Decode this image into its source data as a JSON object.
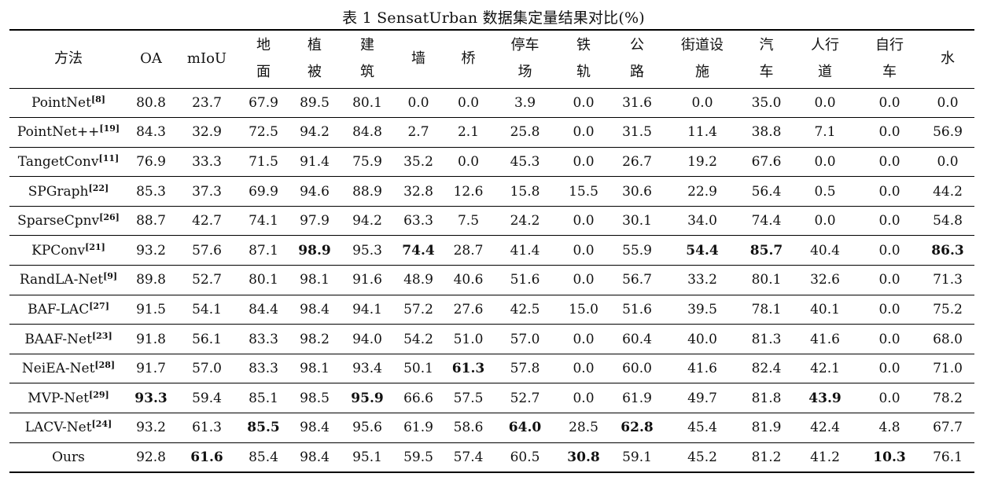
{
  "caption": "表 1 SensatUrban 数据集定量结果对比(%)",
  "columns": [
    {
      "l1": "方法",
      "l2": ""
    },
    {
      "l1": "OA",
      "l2": ""
    },
    {
      "l1": "mIoU",
      "l2": ""
    },
    {
      "l1": "地",
      "l2": "面"
    },
    {
      "l1": "植",
      "l2": "被"
    },
    {
      "l1": "建",
      "l2": "筑"
    },
    {
      "l1": "墙",
      "l2": ""
    },
    {
      "l1": "桥",
      "l2": ""
    },
    {
      "l1": "停车",
      "l2": "场"
    },
    {
      "l1": "铁",
      "l2": "轨"
    },
    {
      "l1": "公",
      "l2": "路"
    },
    {
      "l1": "街道设",
      "l2": "施"
    },
    {
      "l1": "汽",
      "l2": "车"
    },
    {
      "l1": "人行",
      "l2": "道"
    },
    {
      "l1": "自行",
      "l2": "车"
    },
    {
      "l1": "水",
      "l2": ""
    }
  ],
  "rows": [
    {
      "method": "PointNet",
      "ref": "[8]",
      "values": [
        "80.8",
        "23.7",
        "67.9",
        "89.5",
        "80.1",
        "0.0",
        "0.0",
        "3.9",
        "0.0",
        "31.6",
        "0.0",
        "35.0",
        "0.0",
        "0.0",
        "0.0"
      ],
      "bold": []
    },
    {
      "method": "PointNet++",
      "ref": "[19]",
      "values": [
        "84.3",
        "32.9",
        "72.5",
        "94.2",
        "84.8",
        "2.7",
        "2.1",
        "25.8",
        "0.0",
        "31.5",
        "11.4",
        "38.8",
        "7.1",
        "0.0",
        "56.9"
      ],
      "bold": []
    },
    {
      "method": "TangetConv",
      "ref": "[11]",
      "values": [
        "76.9",
        "33.3",
        "71.5",
        "91.4",
        "75.9",
        "35.2",
        "0.0",
        "45.3",
        "0.0",
        "26.7",
        "19.2",
        "67.6",
        "0.0",
        "0.0",
        "0.0"
      ],
      "bold": []
    },
    {
      "method": "SPGraph",
      "ref": "[22]",
      "values": [
        "85.3",
        "37.3",
        "69.9",
        "94.6",
        "88.9",
        "32.8",
        "12.6",
        "15.8",
        "15.5",
        "30.6",
        "22.9",
        "56.4",
        "0.5",
        "0.0",
        "44.2"
      ],
      "bold": []
    },
    {
      "method": "SparseCpnv",
      "ref": "[26]",
      "values": [
        "88.7",
        "42.7",
        "74.1",
        "97.9",
        "94.2",
        "63.3",
        "7.5",
        "24.2",
        "0.0",
        "30.1",
        "34.0",
        "74.4",
        "0.0",
        "0.0",
        "54.8"
      ],
      "bold": []
    },
    {
      "method": "KPConv",
      "ref": "[21]",
      "values": [
        "93.2",
        "57.6",
        "87.1",
        "98.9",
        "95.3",
        "74.4",
        "28.7",
        "41.4",
        "0.0",
        "55.9",
        "54.4",
        "85.7",
        "40.4",
        "0.0",
        "86.3"
      ],
      "bold": [
        3,
        5,
        10,
        11,
        14
      ]
    },
    {
      "method": "RandLA-Net",
      "ref": "[9]",
      "values": [
        "89.8",
        "52.7",
        "80.1",
        "98.1",
        "91.6",
        "48.9",
        "40.6",
        "51.6",
        "0.0",
        "56.7",
        "33.2",
        "80.1",
        "32.6",
        "0.0",
        "71.3"
      ],
      "bold": []
    },
    {
      "method": "BAF-LAC",
      "ref": "[27]",
      "values": [
        "91.5",
        "54.1",
        "84.4",
        "98.4",
        "94.1",
        "57.2",
        "27.6",
        "42.5",
        "15.0",
        "51.6",
        "39.5",
        "78.1",
        "40.1",
        "0.0",
        "75.2"
      ],
      "bold": []
    },
    {
      "method": "BAAF-Net",
      "ref": "[23]",
      "values": [
        "91.8",
        "56.1",
        "83.3",
        "98.2",
        "94.0",
        "54.2",
        "51.0",
        "57.0",
        "0.0",
        "60.4",
        "40.0",
        "81.3",
        "41.6",
        "0.0",
        "68.0"
      ],
      "bold": []
    },
    {
      "method": "NeiEA-Net",
      "ref": "[28]",
      "values": [
        "91.7",
        "57.0",
        "83.3",
        "98.1",
        "93.4",
        "50.1",
        "61.3",
        "57.8",
        "0.0",
        "60.0",
        "41.6",
        "82.4",
        "42.1",
        "0.0",
        "71.0"
      ],
      "bold": [
        6
      ]
    },
    {
      "method": "MVP-Net",
      "ref": "[29]",
      "values": [
        "93.3",
        "59.4",
        "85.1",
        "98.5",
        "95.9",
        "66.6",
        "57.5",
        "52.7",
        "0.0",
        "61.9",
        "49.7",
        "81.8",
        "43.9",
        "0.0",
        "78.2"
      ],
      "bold": [
        0,
        4,
        12
      ]
    },
    {
      "method": "LACV-Net",
      "ref": "[24]",
      "values": [
        "93.2",
        "61.3",
        "85.5",
        "98.4",
        "95.6",
        "61.9",
        "58.6",
        "64.0",
        "28.5",
        "62.8",
        "45.4",
        "81.9",
        "42.4",
        "4.8",
        "67.7"
      ],
      "bold": [
        2,
        7,
        9
      ]
    },
    {
      "method": "Ours",
      "ref": "",
      "values": [
        "92.8",
        "61.6",
        "85.4",
        "98.4",
        "95.1",
        "59.5",
        "57.4",
        "60.5",
        "30.8",
        "59.1",
        "45.2",
        "81.2",
        "41.2",
        "10.3",
        "76.1"
      ],
      "bold": [
        1,
        8,
        13
      ]
    }
  ]
}
